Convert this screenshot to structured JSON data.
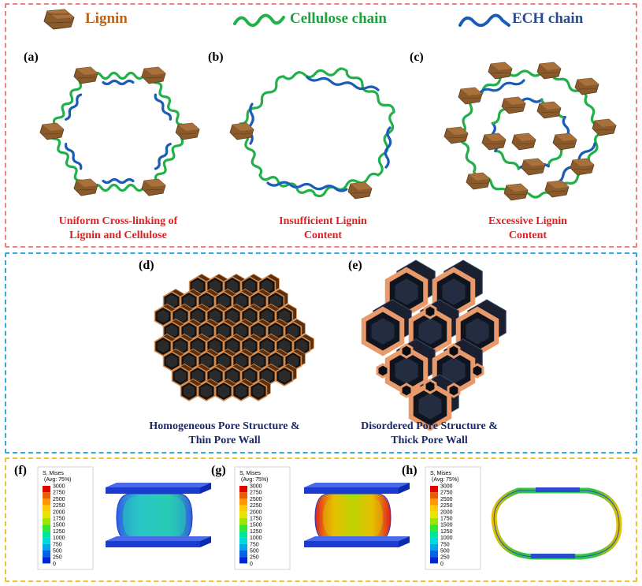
{
  "legend": {
    "lignin": "Lignin",
    "cellulose": "Cellulose chain",
    "ech": "ECH chain"
  },
  "labels": {
    "a": "(a)",
    "b": "(b)",
    "c": "(c)",
    "d": "(d)",
    "e": "(e)",
    "f": "(f)",
    "g": "(g)",
    "h": "(h)"
  },
  "captions": {
    "a": "Uniform Cross-linking of\nLignin and Cellulose",
    "b": "Insufficient Lignin\nContent",
    "c": "Excessive Lignin\nContent",
    "d": "Homogeneous Pore Structure &\nThin Pore Wall",
    "e": "Disordered Pore Structure &\nThick Pore Wall"
  },
  "colorbar": {
    "title1": "S, Mises",
    "title2": "(Avg: 75%)",
    "ticks": [
      "3000",
      "2750",
      "2500",
      "2250",
      "2000",
      "1750",
      "1500",
      "1250",
      "1000",
      "750",
      "500",
      "250",
      "0"
    ],
    "colors": [
      "#e60000",
      "#f05a00",
      "#ff9900",
      "#ffcc00",
      "#e6e600",
      "#99e600",
      "#33e633",
      "#00e699",
      "#00d9d9",
      "#00a6e6",
      "#0066e6",
      "#0026d9"
    ]
  },
  "colors": {
    "cellulose": "#22b04a",
    "ech": "#1a5cb8",
    "lignin": "#8b5a2b",
    "lignin_text": "#b5651d",
    "ech_text": "#2a4a8a",
    "cellulose_text": "#22a040"
  }
}
